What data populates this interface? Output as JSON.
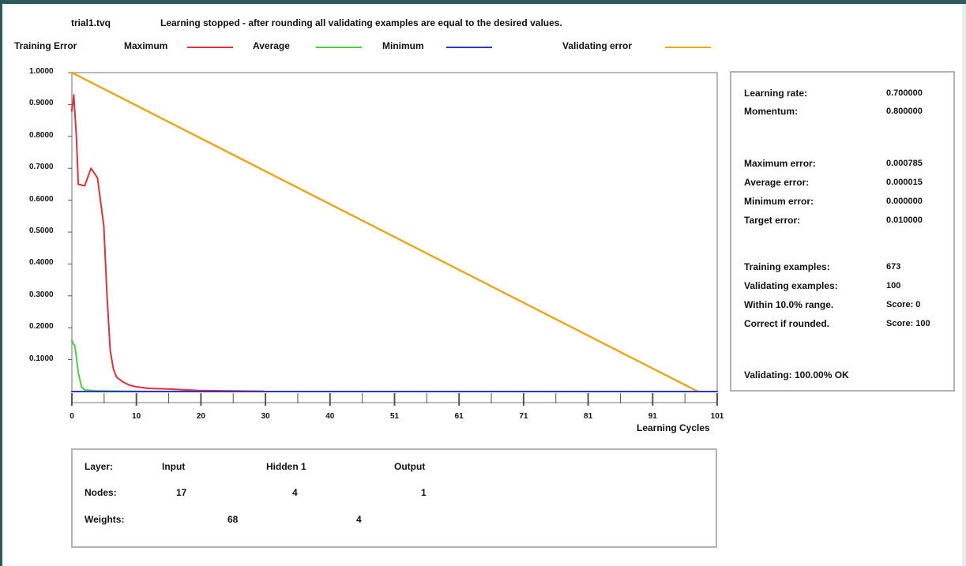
{
  "file_name": "trial1.tvq",
  "status_message": "Learning stopped - after rounding all validating examples are equal to the desired values.",
  "legend": {
    "training_error_label": "Training Error",
    "maximum_label": "Maximum",
    "average_label": "Average",
    "minimum_label": "Minimum",
    "validating_error_label": "Validating error"
  },
  "colors": {
    "maximum": "#e0303a",
    "average": "#48d040",
    "minimum": "#2c36c8",
    "validating": "#e8a81c",
    "frame": "#2f5a5b"
  },
  "chart_data": {
    "type": "line",
    "title": "",
    "xlabel": "Learning Cycles",
    "ylabel": "Training Error",
    "xlim": [
      0,
      101
    ],
    "ylim": [
      0,
      1.0
    ],
    "grid": true,
    "legend_position": "top",
    "y_tick_labels": [
      "1.0000",
      "0.9000",
      "0.8000",
      "0.7000",
      "0.6000",
      "0.5000",
      "0.4000",
      "0.3000",
      "0.2000",
      "0.1000"
    ],
    "x_tick_labels": [
      "0",
      "10",
      "20",
      "30",
      "40",
      "51",
      "61",
      "71",
      "81",
      "91",
      "101"
    ],
    "series": [
      {
        "name": "Maximum",
        "x": [
          0,
          0.3,
          0.7,
          1,
          2,
          3,
          4,
          5,
          5.5,
          6,
          6.5,
          7,
          8,
          9,
          10,
          12,
          15,
          18,
          20,
          25,
          30
        ],
        "y": [
          0.88,
          0.93,
          0.8,
          0.65,
          0.645,
          0.7,
          0.67,
          0.52,
          0.3,
          0.13,
          0.07,
          0.045,
          0.03,
          0.02,
          0.015,
          0.01,
          0.008,
          0.005,
          0.003,
          0.002,
          0.001
        ]
      },
      {
        "name": "Average",
        "x": [
          0,
          0.5,
          1,
          1.5,
          2,
          4,
          10,
          30
        ],
        "y": [
          0.16,
          0.14,
          0.06,
          0.015,
          0.005,
          0.002,
          0.0005,
          0.0
        ]
      },
      {
        "name": "Minimum",
        "x": [
          0,
          101
        ],
        "y": [
          0.0,
          0.0
        ]
      },
      {
        "name": "Validating error",
        "x": [
          0,
          98
        ],
        "y": [
          1.0,
          0.0
        ]
      }
    ]
  },
  "info": {
    "learning_rate_label": "Learning rate:",
    "learning_rate_value": "0.700000",
    "momentum_label": "Momentum:",
    "momentum_value": "0.800000",
    "max_error_label": "Maximum error:",
    "max_error_value": "0.000785",
    "avg_error_label": "Average error:",
    "avg_error_value": "0.000015",
    "min_error_label": "Minimum error:",
    "min_error_value": "0.000000",
    "target_error_label": "Target error:",
    "target_error_value": "0.010000",
    "training_examples_label": "Training examples:",
    "training_examples_value": "673",
    "validating_examples_label": "Validating examples:",
    "validating_examples_value": "100",
    "within_range_label": "Within 10.0% range.",
    "within_range_value": "Score: 0",
    "correct_rounded_label": "Correct if rounded.",
    "correct_rounded_value": "Score: 100",
    "validating_result": "Validating: 100.00% OK"
  },
  "network": {
    "layer_label": "Layer:",
    "layers": [
      "Input",
      "Hidden 1",
      "Output"
    ],
    "nodes_label": "Nodes:",
    "nodes": [
      "17",
      "4",
      "1"
    ],
    "weights_label": "Weights:",
    "weights": [
      "68",
      "4"
    ]
  }
}
